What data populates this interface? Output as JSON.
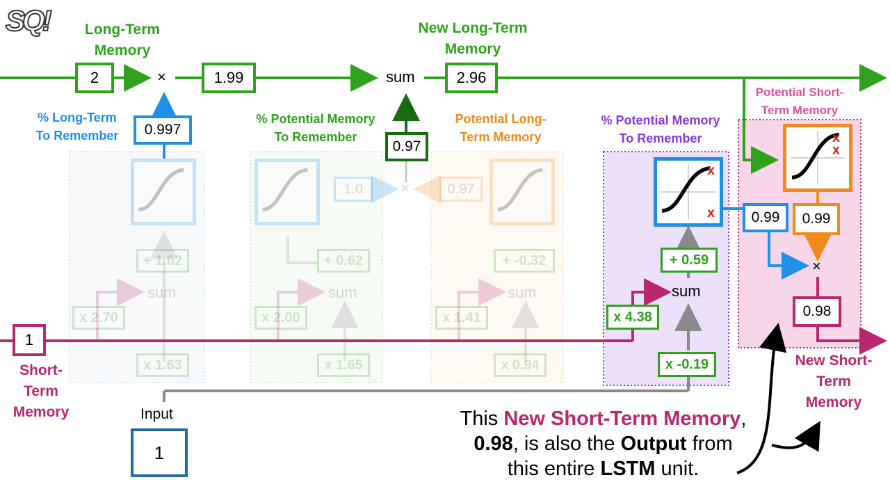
{
  "logo": {
    "text": "SQ!",
    "name": "statquest-logo"
  },
  "colors": {
    "green": "#2ea21b",
    "dark_green": "#176b11",
    "blue": "#1e90e8",
    "orange": "#f08a1c",
    "purple": "#8a38d8",
    "magenta": "#b8286e",
    "gray": "#8a8a8a",
    "pink_bg": "#f7d6ea"
  },
  "top_labels": {
    "long_term_memory": "Long-Term\nMemory",
    "new_long_term_memory": "New Long-Term\nMemory"
  },
  "long_term": {
    "input_value": "2",
    "after_forget": "1.99",
    "new_value": "2.96",
    "mult_symbol": "×",
    "sum_label": "sum"
  },
  "forget_gate": {
    "title": "% Long-Term\nTo Remember",
    "output": "0.997",
    "bias": "+ 1.62",
    "short_weight": "x 2.70",
    "input_weight": "x 1.63",
    "sum_label": "sum"
  },
  "input_gate": {
    "title": "% Potential Memory\nTo Remember",
    "output": "1.0",
    "bias": "+ 0.62",
    "short_weight": "x 2.00",
    "input_weight": "x 1.65",
    "sum_label": "sum"
  },
  "candidate": {
    "title": "Potential Long-\nTerm Memory",
    "output": "0.97",
    "bias": "+ -0.32",
    "short_weight": "x 1.41",
    "input_weight": "x 0.94",
    "sum_label": "sum",
    "mult_symbol": "×",
    "product": "0.97"
  },
  "output_gate": {
    "title": "% Potential Memory\nTo Remember",
    "output": "0.99",
    "bias": "+ 0.59",
    "short_weight": "x 4.38",
    "input_weight": "x -0.19",
    "sum_label": "sum"
  },
  "potential_short": {
    "title": "Potential Short-\nTerm Memory",
    "output": "0.99",
    "mult_symbol": "×",
    "result": "0.98"
  },
  "short_term": {
    "label": "Short-\nTerm\nMemory",
    "value": "1",
    "new_label": "New Short-\nTerm\nMemory"
  },
  "input": {
    "label": "Input",
    "value": "1"
  },
  "note": {
    "part1": "This ",
    "highlight": "New Short-Term Memory",
    "part2": ",",
    "value": "0.98",
    "part3": ", is also the ",
    "output_word": "Output",
    "part4": " from",
    "part5": "this entire ",
    "lstm": "LSTM",
    "part6": " unit."
  }
}
